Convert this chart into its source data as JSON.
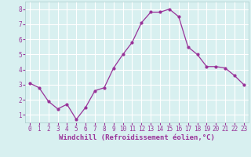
{
  "x": [
    0,
    1,
    2,
    3,
    4,
    5,
    6,
    7,
    8,
    9,
    10,
    11,
    12,
    13,
    14,
    15,
    16,
    17,
    18,
    19,
    20,
    21,
    22,
    23
  ],
  "y": [
    3.1,
    2.8,
    1.9,
    1.4,
    1.7,
    0.7,
    1.5,
    2.6,
    2.8,
    4.1,
    5.0,
    5.8,
    7.1,
    7.8,
    7.8,
    8.0,
    7.5,
    5.5,
    5.0,
    4.2,
    4.2,
    4.1,
    3.6,
    3.0
  ],
  "line_color": "#993399",
  "marker": "o",
  "markersize": 2.0,
  "linewidth": 0.9,
  "bg_color": "#d8f0f0",
  "grid_color": "#ffffff",
  "xlabel": "Windchill (Refroidissement éolien,°C)",
  "xlabel_fontsize": 6.5,
  "xlabel_color": "#993399",
  "ylabel_ticks": [
    1,
    2,
    3,
    4,
    5,
    6,
    7,
    8
  ],
  "xlim": [
    -0.5,
    23.5
  ],
  "ylim": [
    0.5,
    8.5
  ],
  "tick_fontsize": 5.5,
  "tick_color": "#993399"
}
